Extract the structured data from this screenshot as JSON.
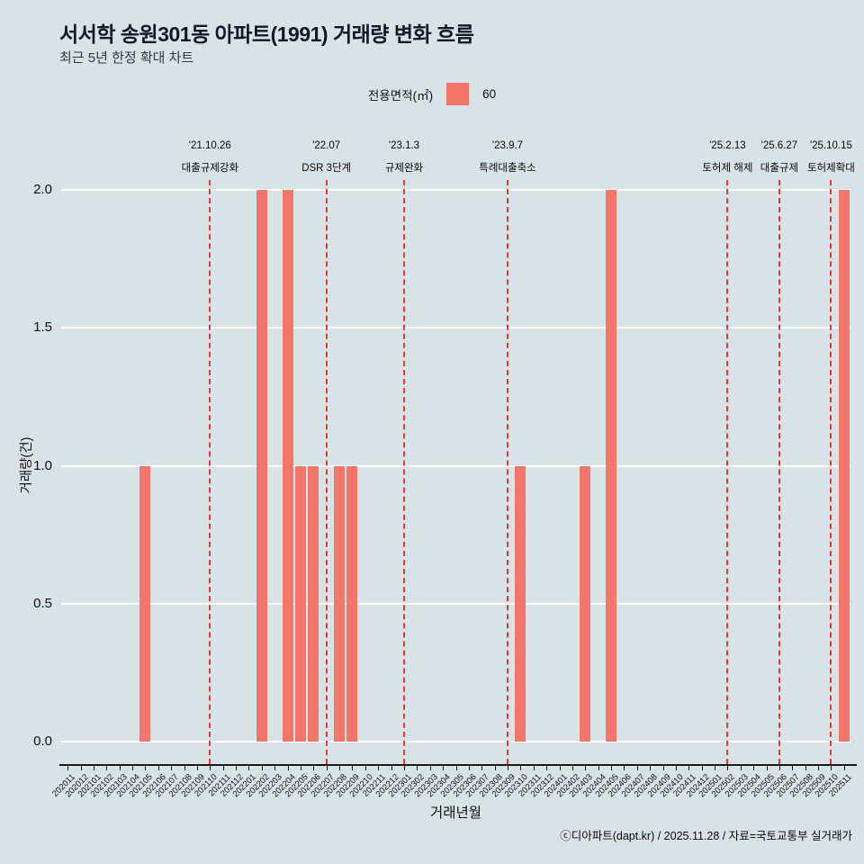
{
  "title": "서서학 송원301동 아파트(1991) 거래량 변화 흐름",
  "subtitle": "최근 5년 한정 확대 차트",
  "legend": {
    "label": "전용면적(㎡)",
    "series_name": "60"
  },
  "footer": "ⓒ디아파트(dapt.kr) / 2025.11.28 / 자료=국토교통부 실거래가",
  "colors": {
    "background": "#d8e3e8",
    "bar": "#f4766a",
    "event_line": "#e8392f",
    "grid": "#ffffff"
  },
  "chart_data": {
    "type": "bar",
    "title": "서서학 송원301동 아파트(1991) 거래량 변화 흐름",
    "subtitle": "최근 5년 한정 확대 차트",
    "xlabel": "거래년월",
    "ylabel": "거래량(건)",
    "ylim": [
      0,
      2
    ],
    "yticks": [
      0,
      0.5,
      1,
      1.5,
      2
    ],
    "grid": true,
    "legend_position": "top-center",
    "categories": [
      "202011",
      "202012",
      "202101",
      "202102",
      "202103",
      "202104",
      "202105",
      "202106",
      "202107",
      "202108",
      "202109",
      "202110",
      "202111",
      "202112",
      "202201",
      "202202",
      "202203",
      "202204",
      "202205",
      "202206",
      "202207",
      "202208",
      "202209",
      "202210",
      "202211",
      "202212",
      "202301",
      "202302",
      "202303",
      "202304",
      "202305",
      "202306",
      "202307",
      "202308",
      "202309",
      "202310",
      "202311",
      "202312",
      "202401",
      "202402",
      "202403",
      "202404",
      "202405",
      "202406",
      "202407",
      "202408",
      "202409",
      "202410",
      "202411",
      "202412",
      "202501",
      "202502",
      "202503",
      "202504",
      "202505",
      "202506",
      "202507",
      "202508",
      "202509",
      "202510",
      "202511"
    ],
    "series": [
      {
        "name": "60",
        "values": [
          0,
          0,
          0,
          0,
          0,
          0,
          1,
          0,
          0,
          0,
          0,
          0,
          0,
          0,
          0,
          2,
          0,
          2,
          1,
          1,
          0,
          1,
          1,
          0,
          0,
          0,
          0,
          0,
          0,
          0,
          0,
          0,
          0,
          0,
          0,
          1,
          0,
          0,
          0,
          0,
          1,
          0,
          2,
          0,
          0,
          0,
          0,
          0,
          0,
          0,
          0,
          0,
          0,
          0,
          0,
          0,
          0,
          0,
          0,
          0,
          2
        ]
      }
    ],
    "annotations": [
      {
        "date": "'21.10.26",
        "label": "대출규제강화",
        "category": "202110"
      },
      {
        "date": "'22.07",
        "label": "DSR 3단계",
        "category": "202207"
      },
      {
        "date": "'23.1.3",
        "label": "규제완화",
        "category": "202301"
      },
      {
        "date": "'23.9.7",
        "label": "특례대출축소",
        "category": "202309"
      },
      {
        "date": "'25.2.13",
        "label": "토허제 해제",
        "category": "202502"
      },
      {
        "date": "'25.6.27",
        "label": "대출규제",
        "category": "202506"
      },
      {
        "date": "'25.10.15",
        "label": "토허제확대",
        "category": "202510"
      }
    ]
  }
}
